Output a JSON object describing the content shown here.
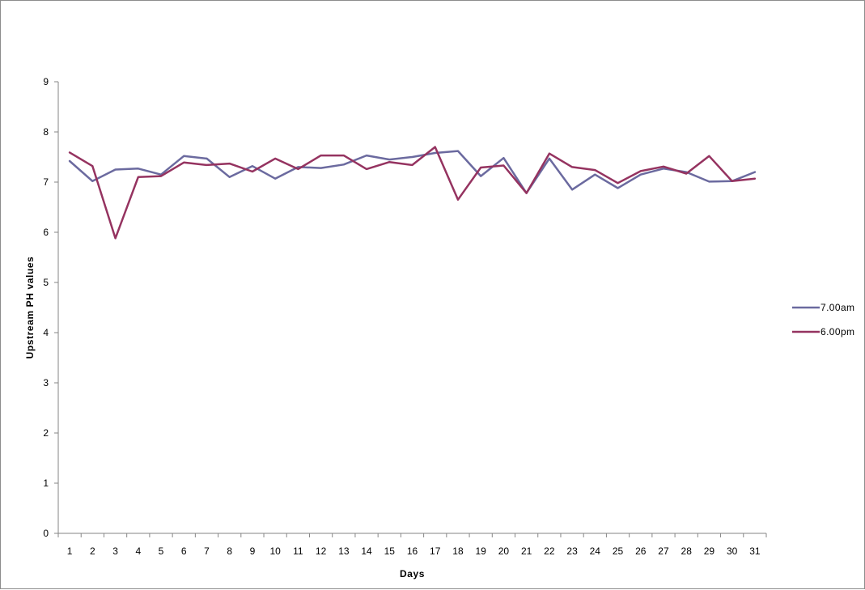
{
  "chart_data": {
    "type": "line",
    "title": "",
    "xlabel": "Days",
    "ylabel": "Upstream PH values",
    "ylim": [
      0,
      9
    ],
    "yticks": [
      0,
      1,
      2,
      3,
      4,
      5,
      6,
      7,
      8,
      9
    ],
    "categories": [
      "1",
      "2",
      "3",
      "4",
      "5",
      "6",
      "7",
      "8",
      "9",
      "10",
      "11",
      "12",
      "13",
      "14",
      "15",
      "16",
      "17",
      "18",
      "19",
      "20",
      "21",
      "22",
      "23",
      "24",
      "25",
      "26",
      "27",
      "28",
      "29",
      "30",
      "31"
    ],
    "grid": false,
    "legend_position": "right",
    "series": [
      {
        "name": "7.00am",
        "color": "#6b6a9f",
        "values": [
          7.42,
          7.02,
          7.25,
          7.27,
          7.15,
          7.52,
          7.47,
          7.1,
          7.32,
          7.07,
          7.3,
          7.28,
          7.35,
          7.53,
          7.45,
          7.5,
          7.58,
          7.62,
          7.12,
          7.48,
          6.78,
          7.47,
          6.85,
          7.15,
          6.88,
          7.15,
          7.27,
          7.2,
          7.01,
          7.02,
          7.2
        ]
      },
      {
        "name": "6.00pm",
        "color": "#953360",
        "values": [
          7.59,
          7.32,
          5.88,
          7.1,
          7.12,
          7.39,
          7.34,
          7.37,
          7.21,
          7.47,
          7.26,
          7.53,
          7.53,
          7.26,
          7.4,
          7.34,
          7.7,
          6.65,
          7.29,
          7.33,
          6.78,
          7.57,
          7.3,
          7.24,
          6.98,
          7.22,
          7.31,
          7.17,
          7.52,
          7.02,
          7.07
        ]
      }
    ]
  }
}
